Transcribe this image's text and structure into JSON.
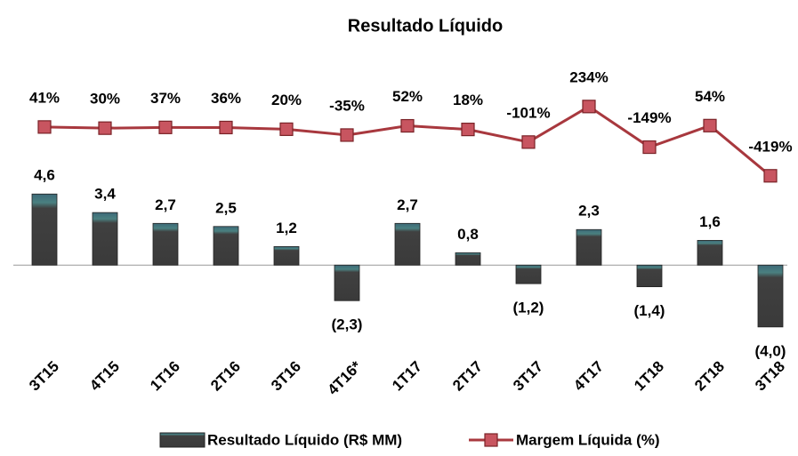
{
  "chart_data": {
    "type": "bar_line",
    "title": "Resultado Líquido",
    "categories": [
      "3T15",
      "4T15",
      "1T16",
      "2T16",
      "3T16",
      "4T16*",
      "1T17",
      "2T17",
      "3T17",
      "4T17",
      "1T18",
      "2T18",
      "3T18"
    ],
    "ylim": [
      -7,
      11.4
    ],
    "y2lim": [
      -2280,
      400
    ],
    "series": [
      {
        "name": "Resultado Líquido (R$ MM)",
        "type": "bar",
        "color": "#404040",
        "values": [
          4.6,
          3.4,
          2.7,
          2.5,
          1.2,
          -2.3,
          2.7,
          0.8,
          -1.2,
          2.3,
          -1.4,
          1.6,
          -4.0
        ],
        "value_labels": [
          "4,6",
          "3,4",
          "2,7",
          "2,5",
          "1,2",
          "(2,3)",
          "2,7",
          "0,8",
          "(1,2)",
          "2,3",
          "(1,4)",
          "1,6",
          "(4,0)"
        ]
      },
      {
        "name": "Margem Líquida (%)",
        "type": "line",
        "axis": "y2",
        "color": "#a8383e",
        "values": [
          41,
          30,
          37,
          36,
          20,
          -35,
          52,
          18,
          -101,
          234,
          -149,
          54,
          -419
        ],
        "value_labels": [
          "41%",
          "30%",
          "37%",
          "36%",
          "20%",
          "-35%",
          "52%",
          "18%",
          "-101%",
          "234%",
          "-149%",
          "54%",
          "-419%"
        ]
      }
    ]
  }
}
